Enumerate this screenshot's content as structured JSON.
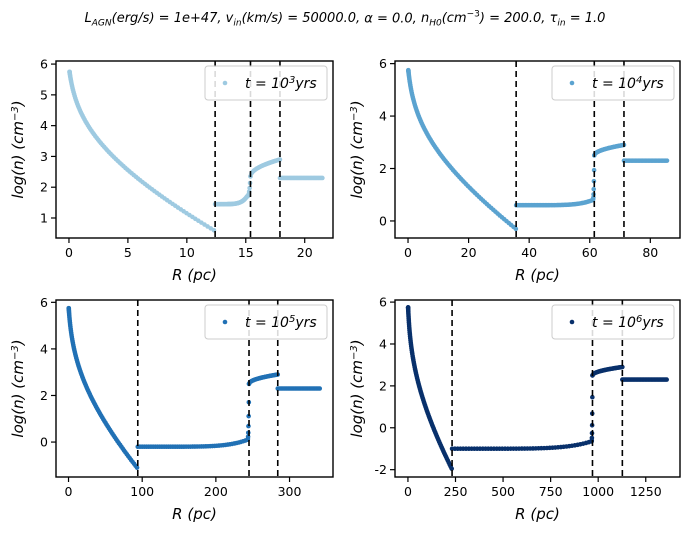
{
  "figure": {
    "title_parts": {
      "l_agn": "L",
      "l_agn_sub": "AGN",
      "l_agn_units": "(erg/s) = 1e+47, ",
      "v_in": "v",
      "v_in_sub": "in",
      "v_in_units": "(km/s) = 50000.0, ",
      "alpha": "α = 0.0, ",
      "n_h0": "n",
      "n_h0_sub": "H0",
      "n_h0_units_a": "(cm",
      "n_h0_units_exp": "−3",
      "n_h0_units_b": ") = 200.0, ",
      "tau": "τ",
      "tau_sub": "in",
      "tau_units": " = 1.0"
    }
  },
  "chart_data": [
    {
      "type": "scatter",
      "xlabel": "R   (pc)",
      "ylabel": "log(n)   (cm−3)",
      "legend": "t = 10^3 yrs",
      "legend_base": "t = 10",
      "legend_exp": "3",
      "legend_suffix": "yrs",
      "legend_location": "upper right",
      "color": "#9ecae1",
      "xlim": [
        -1.1,
        22.4
      ],
      "ylim": [
        0.35,
        6.1
      ],
      "xticks": [
        0,
        5,
        10,
        15,
        20
      ],
      "yticks": [
        1,
        2,
        3,
        4,
        5,
        6
      ],
      "vlines": [
        12.4,
        15.4,
        17.9
      ],
      "profile": {
        "shocked_wind": {
          "x_range": [
            12.4,
            15.1
          ],
          "y_range": [
            1.45,
            1.7
          ]
        },
        "swept_shell": {
          "x_range": [
            15.4,
            17.9
          ],
          "y_range": [
            2.35,
            2.9
          ]
        },
        "ambient": {
          "x_range": [
            17.9,
            21.5
          ],
          "y": 2.3
        },
        "wind": {
          "x_range": [
            0.05,
            12.3
          ],
          "y_start": 5.75,
          "y_end": 0.6
        }
      }
    },
    {
      "type": "scatter",
      "xlabel": "R   (pc)",
      "ylabel": "log(n)   (cm−3)",
      "legend": "t = 10^4 yrs",
      "legend_base": "t = 10",
      "legend_exp": "4",
      "legend_suffix": "yrs",
      "legend_location": "upper right",
      "color": "#5ba3d0",
      "xlim": [
        -4.3,
        89.8
      ],
      "ylim": [
        -0.65,
        6.1
      ],
      "xticks": [
        0,
        20,
        40,
        60,
        80
      ],
      "yticks": [
        0,
        2,
        4,
        6
      ],
      "vlines": [
        35.7,
        61.5,
        71.3
      ],
      "profile": {
        "shocked_wind": {
          "x_range": [
            35.7,
            61.0
          ],
          "y_range": [
            0.6,
            0.8
          ]
        },
        "swept_shell": {
          "x_range": [
            61.5,
            71.3
          ],
          "y_range": [
            2.5,
            2.9
          ]
        },
        "ambient": {
          "x_range": [
            71.3,
            85.5
          ],
          "y": 2.3
        },
        "wind": {
          "x_range": [
            0.1,
            35.6
          ],
          "y_start": 5.75,
          "y_end": -0.3
        }
      }
    },
    {
      "type": "scatter",
      "xlabel": "R   (pc)",
      "ylabel": "log(n)   (cm−3)",
      "legend": "t = 10^5 yrs",
      "legend_base": "t = 10",
      "legend_exp": "5",
      "legend_suffix": "yrs",
      "legend_location": "upper right",
      "color": "#2171b5",
      "xlim": [
        -17,
        359
      ],
      "ylim": [
        -1.5,
        6.1
      ],
      "xticks": [
        0,
        100,
        200,
        300
      ],
      "yticks": [
        0,
        2,
        4,
        6
      ],
      "vlines": [
        94,
        245,
        284
      ],
      "profile": {
        "shocked_wind": {
          "x_range": [
            94,
            243
          ],
          "y_range": [
            -0.2,
            0.1
          ]
        },
        "swept_shell": {
          "x_range": [
            245,
            284
          ],
          "y_range": [
            2.5,
            2.9
          ]
        },
        "ambient": {
          "x_range": [
            284,
            341
          ],
          "y": 2.3
        },
        "wind": {
          "x_range": [
            0.3,
            93
          ],
          "y_start": 5.75,
          "y_end": -1.1
        }
      }
    },
    {
      "type": "scatter",
      "xlabel": "R   (pc)",
      "ylabel": "log(n)   (cm−3)",
      "legend": "t = 10^6 yrs",
      "legend_base": "t = 10",
      "legend_exp": "6",
      "legend_suffix": "yrs",
      "legend_location": "upper right",
      "color": "#08306b",
      "xlim": [
        -68,
        1430
      ],
      "ylim": [
        -2.35,
        6.1
      ],
      "xticks": [
        0,
        250,
        500,
        750,
        1000,
        1250
      ],
      "yticks": [
        -2,
        0,
        2,
        4,
        6
      ],
      "vlines": [
        232,
        970,
        1127
      ],
      "profile": {
        "shocked_wind": {
          "x_range": [
            232,
            965
          ],
          "y_range": [
            -1.0,
            -0.65
          ]
        },
        "swept_shell": {
          "x_range": [
            970,
            1127
          ],
          "y_range": [
            2.5,
            2.9
          ]
        },
        "ambient": {
          "x_range": [
            1127,
            1360
          ],
          "y": 2.3
        },
        "wind": {
          "x_range": [
            1,
            230
          ],
          "y_start": 5.75,
          "y_end": -1.95
        }
      }
    }
  ]
}
